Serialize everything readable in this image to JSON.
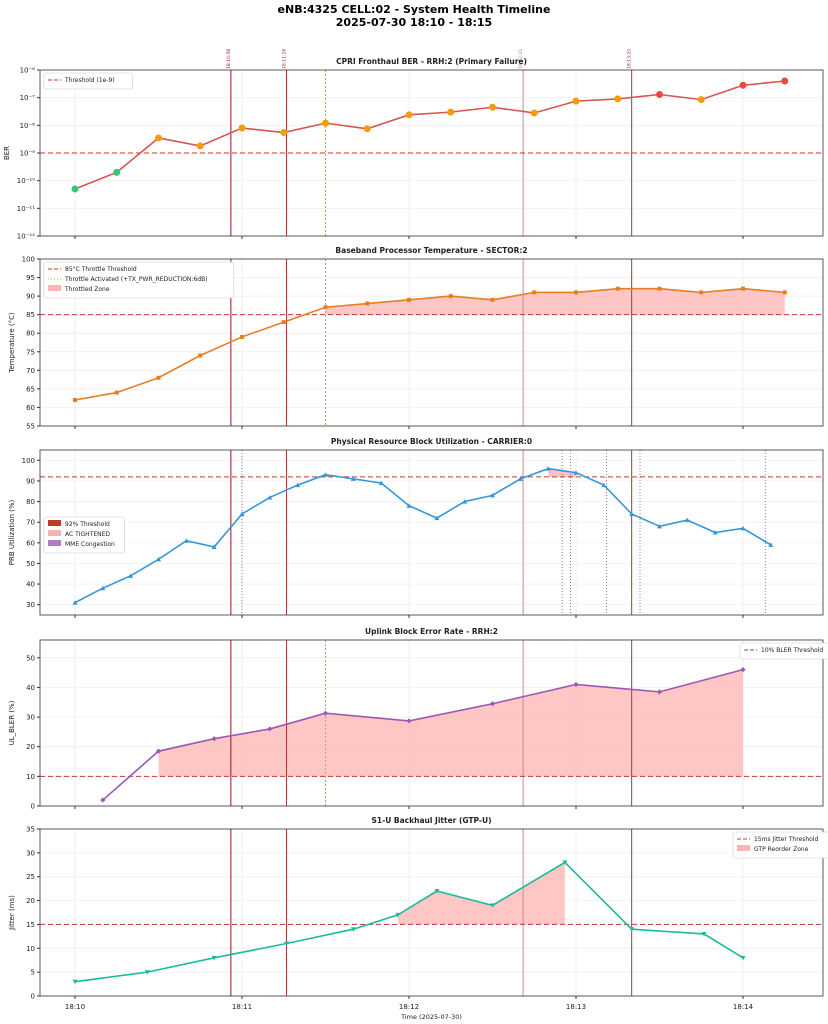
{
  "title": "eNB:4325 CELL:02 - System Health Timeline",
  "subtitle": "2025-07-30 18:10 - 18:15",
  "chart_data": [
    {
      "type": "line",
      "title": "CPRI Fronthaul BER - RRH:2 (Primary Failure)",
      "ylabel": "BER",
      "yscale": "log",
      "ylim": [
        1e-12,
        1e-06
      ],
      "yticks": [
        "10⁻¹²",
        "10⁻¹¹",
        "10⁻¹⁰",
        "10⁻⁹",
        "10⁻⁸",
        "10⁻⁷",
        "10⁻⁶"
      ],
      "x": [
        "18:10:00",
        "18:10:15",
        "18:10:30",
        "18:10:45",
        "18:11:00",
        "18:11:15",
        "18:11:30",
        "18:11:45",
        "18:12:00",
        "18:12:15",
        "18:12:30",
        "18:12:45",
        "18:13:00",
        "18:13:15",
        "18:13:30",
        "18:13:45",
        "18:14:00",
        "18:14:15"
      ],
      "values": [
        5e-11,
        2e-10,
        3.5e-09,
        1.8e-09,
        8e-09,
        5.5e-09,
        1.2e-08,
        7.5e-09,
        2.4e-08,
        3e-08,
        4.5e-08,
        2.8e-08,
        7.5e-08,
        9e-08,
        1.3e-07,
        8.5e-08,
        2.8e-07,
        4e-07
      ],
      "line_color": "#d9534f",
      "point_colors": {
        "ok": "#2ecc71",
        "warn": "#f39c12",
        "critical": "#e74c3c"
      },
      "threshold": {
        "value": 1e-09,
        "label": "Threshold (1e-9)",
        "color": "#c0392b"
      },
      "legend": "top-left",
      "grid": true
    },
    {
      "type": "line",
      "title": "Baseband Processor Temperature - SECTOR:2",
      "ylabel": "Temperature (°C)",
      "ylim": [
        55,
        100
      ],
      "yticks": [
        55,
        60,
        65,
        70,
        75,
        80,
        85,
        90,
        95,
        100
      ],
      "x": [
        "18:10:00",
        "18:10:15",
        "18:10:30",
        "18:10:45",
        "18:11:00",
        "18:11:15",
        "18:11:30",
        "18:11:45",
        "18:12:00",
        "18:12:15",
        "18:12:30",
        "18:12:45",
        "18:13:00",
        "18:13:15",
        "18:13:30",
        "18:13:45",
        "18:14:00",
        "18:14:15"
      ],
      "values": [
        62,
        64,
        68,
        74,
        79,
        83,
        87,
        88,
        89,
        90,
        89,
        91,
        91,
        92,
        92,
        91,
        92,
        91
      ],
      "line_color": "#e67e22",
      "threshold": {
        "value": 85,
        "label": "85°C Throttle Threshold",
        "color": "#c0392b"
      },
      "throttle_label": "Throttle Activated (+TX_PWR_REDUCTION:6dB)",
      "zone_label": "Throttled Zone",
      "zone_from": "18:11:30",
      "legend": "top-left",
      "grid": true
    },
    {
      "type": "line",
      "title": "Physical Resource Block Utilization - CARRIER:0",
      "ylabel": "PRB Utilization (%)",
      "ylim": [
        25,
        105
      ],
      "yticks": [
        30,
        40,
        50,
        60,
        70,
        80,
        90,
        100
      ],
      "x": [
        "18:10:00",
        "18:10:10",
        "18:10:20",
        "18:10:30",
        "18:10:40",
        "18:10:50",
        "18:11:00",
        "18:11:10",
        "18:11:20",
        "18:11:30",
        "18:11:40",
        "18:11:50",
        "18:12:00",
        "18:12:10",
        "18:12:20",
        "18:12:30",
        "18:12:40",
        "18:12:50",
        "18:13:00",
        "18:13:10",
        "18:13:20",
        "18:13:30",
        "18:13:40",
        "18:13:50",
        "18:14:00",
        "18:14:10"
      ],
      "values": [
        31,
        38,
        44,
        52,
        61,
        58,
        74,
        82,
        88,
        93,
        91,
        89,
        78,
        72,
        80,
        83,
        91,
        96,
        94,
        88,
        74,
        68,
        71,
        65,
        67,
        59
      ],
      "line_color": "#3498db",
      "threshold": {
        "value": 92,
        "label": "92% Threshold",
        "color": "#c0392b"
      },
      "ac_label": "AC TIGHTENED",
      "mme_label": "MME Congestion",
      "mme_markers": [
        "18:11:00",
        "18:12:55",
        "18:12:58",
        "18:13:11",
        "18:13:23",
        "18:14:08"
      ],
      "legend": "center-left",
      "grid": true
    },
    {
      "type": "area",
      "title": "Uplink Block Error Rate - RRH:2",
      "ylabel": "UL_BLER (%)",
      "ylim": [
        0,
        56
      ],
      "yticks": [
        0,
        10,
        20,
        30,
        40,
        50
      ],
      "x": [
        "18:10:10",
        "18:10:30",
        "18:10:50",
        "18:11:10",
        "18:11:30",
        "18:12:00",
        "18:12:30",
        "18:13:00",
        "18:13:30",
        "18:14:00"
      ],
      "values": [
        2,
        18.5,
        22.7,
        26,
        31.3,
        28.7,
        34.5,
        41,
        38.5,
        46
      ],
      "line_color": "#9b59b6",
      "threshold": {
        "value": 10,
        "label": "10% BLER Threshold",
        "color": "#c0392b"
      },
      "legend": "top-right",
      "grid": true
    },
    {
      "type": "line",
      "title": "S1-U Backhaul Jitter (GTP-U)",
      "ylabel": "Jitter (ms)",
      "xlabel": "Time (2025-07-30)",
      "ylim": [
        0,
        35
      ],
      "yticks": [
        0,
        5,
        10,
        15,
        20,
        25,
        30,
        35
      ],
      "x": [
        "18:10:00",
        "18:10:26",
        "18:10:50",
        "18:11:16",
        "18:11:40",
        "18:11:56",
        "18:12:10",
        "18:12:30",
        "18:12:56",
        "18:13:20",
        "18:13:46",
        "18:14:00"
      ],
      "values": [
        3,
        5,
        8,
        11,
        14,
        17,
        22,
        19,
        28,
        14,
        13,
        8
      ],
      "line_color": "#1abc9c",
      "threshold": {
        "value": 15,
        "label": "15ms Jitter Threshold",
        "color": "#c0392b"
      },
      "zone_label": "GTP Reorder Zone",
      "zone_range": [
        "18:11:56",
        "18:12:56"
      ],
      "legend": "top-right",
      "grid": true
    }
  ],
  "xticks": [
    "18:10",
    "18:11",
    "18:12",
    "18:13",
    "18:14"
  ],
  "event_markers": [
    {
      "time": "18:10:56",
      "color": "#8b1a1a"
    },
    {
      "time": "18:11:16",
      "color": "#a33a3a"
    },
    {
      "time": "18:12:41",
      "color": "#c98a8a"
    },
    {
      "time": "18:13:20",
      "color": "#a33a3a"
    }
  ],
  "throttle_marker": {
    "time": "18:11:30",
    "color": "#f39c12"
  }
}
